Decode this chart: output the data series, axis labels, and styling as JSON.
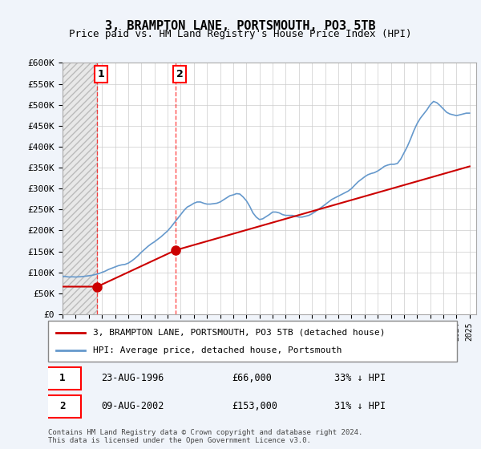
{
  "title": "3, BRAMPTON LANE, PORTSMOUTH, PO3 5TB",
  "subtitle": "Price paid vs. HM Land Registry's House Price Index (HPI)",
  "ylabel": "",
  "xlabel": "",
  "ylim": [
    0,
    600000
  ],
  "xlim_start": 1994.0,
  "xlim_end": 2025.5,
  "yticks": [
    0,
    50000,
    100000,
    150000,
    200000,
    250000,
    300000,
    350000,
    400000,
    450000,
    500000,
    550000,
    600000
  ],
  "ytick_labels": [
    "£0",
    "£50K",
    "£100K",
    "£150K",
    "£200K",
    "£250K",
    "£300K",
    "£350K",
    "£400K",
    "£450K",
    "£500K",
    "£550K",
    "£600K"
  ],
  "sale1_year": 1996.646,
  "sale1_price": 66000,
  "sale1_label": "1",
  "sale1_date": "23-AUG-1996",
  "sale1_hpi_pct": "33% ↓ HPI",
  "sale2_year": 2002.608,
  "sale2_price": 153000,
  "sale2_label": "2",
  "sale2_date": "09-AUG-2002",
  "sale2_hpi_pct": "31% ↓ HPI",
  "hpi_color": "#6699cc",
  "sale_color": "#cc0000",
  "legend_line1": "3, BRAMPTON LANE, PORTSMOUTH, PO3 5TB (detached house)",
  "legend_line2": "HPI: Average price, detached house, Portsmouth",
  "footer": "Contains HM Land Registry data © Crown copyright and database right 2024.\nThis data is licensed under the Open Government Licence v3.0.",
  "hpi_data_years": [
    1994.0,
    1994.25,
    1994.5,
    1994.75,
    1995.0,
    1995.25,
    1995.5,
    1995.75,
    1996.0,
    1996.25,
    1996.5,
    1996.75,
    1997.0,
    1997.25,
    1997.5,
    1997.75,
    1998.0,
    1998.25,
    1998.5,
    1998.75,
    1999.0,
    1999.25,
    1999.5,
    1999.75,
    2000.0,
    2000.25,
    2000.5,
    2000.75,
    2001.0,
    2001.25,
    2001.5,
    2001.75,
    2002.0,
    2002.25,
    2002.5,
    2002.75,
    2003.0,
    2003.25,
    2003.5,
    2003.75,
    2004.0,
    2004.25,
    2004.5,
    2004.75,
    2005.0,
    2005.25,
    2005.5,
    2005.75,
    2006.0,
    2006.25,
    2006.5,
    2006.75,
    2007.0,
    2007.25,
    2007.5,
    2007.75,
    2008.0,
    2008.25,
    2008.5,
    2008.75,
    2009.0,
    2009.25,
    2009.5,
    2009.75,
    2010.0,
    2010.25,
    2010.5,
    2010.75,
    2011.0,
    2011.25,
    2011.5,
    2011.75,
    2012.0,
    2012.25,
    2012.5,
    2012.75,
    2013.0,
    2013.25,
    2013.5,
    2013.75,
    2014.0,
    2014.25,
    2014.5,
    2014.75,
    2015.0,
    2015.25,
    2015.5,
    2015.75,
    2016.0,
    2016.25,
    2016.5,
    2016.75,
    2017.0,
    2017.25,
    2017.5,
    2017.75,
    2018.0,
    2018.25,
    2018.5,
    2018.75,
    2019.0,
    2019.25,
    2019.5,
    2019.75,
    2020.0,
    2020.25,
    2020.5,
    2020.75,
    2021.0,
    2021.25,
    2021.5,
    2021.75,
    2022.0,
    2022.25,
    2022.5,
    2022.75,
    2023.0,
    2023.25,
    2023.5,
    2023.75,
    2024.0,
    2024.25,
    2024.5,
    2024.75,
    2025.0
  ],
  "hpi_data_values": [
    91000,
    90000,
    89000,
    89500,
    89000,
    89500,
    90000,
    91000,
    92000,
    93000,
    95000,
    97000,
    100000,
    103000,
    107000,
    110000,
    113000,
    116000,
    118000,
    119000,
    122000,
    127000,
    133000,
    140000,
    148000,
    155000,
    162000,
    168000,
    173000,
    179000,
    185000,
    192000,
    199000,
    208000,
    218000,
    228000,
    238000,
    248000,
    256000,
    260000,
    265000,
    268000,
    268000,
    265000,
    263000,
    263000,
    264000,
    265000,
    268000,
    273000,
    278000,
    283000,
    285000,
    288000,
    287000,
    280000,
    271000,
    258000,
    242000,
    232000,
    226000,
    228000,
    233000,
    238000,
    244000,
    244000,
    242000,
    238000,
    236000,
    236000,
    236000,
    234000,
    232000,
    232000,
    234000,
    236000,
    240000,
    245000,
    251000,
    256000,
    262000,
    268000,
    274000,
    278000,
    282000,
    286000,
    290000,
    294000,
    300000,
    308000,
    316000,
    322000,
    328000,
    333000,
    336000,
    338000,
    342000,
    347000,
    353000,
    356000,
    358000,
    358000,
    360000,
    370000,
    385000,
    400000,
    418000,
    438000,
    455000,
    468000,
    478000,
    488000,
    500000,
    508000,
    505000,
    498000,
    490000,
    482000,
    478000,
    476000,
    474000,
    476000,
    478000,
    480000,
    480000
  ],
  "sale_line_years": [
    1994.0,
    1996.646,
    2002.608,
    2025.0
  ],
  "sale_line_values": [
    66000,
    66000,
    153000,
    353000
  ],
  "bg_color": "#f0f4fa",
  "plot_bg": "#ffffff",
  "hatch_end_year": 1996.646
}
